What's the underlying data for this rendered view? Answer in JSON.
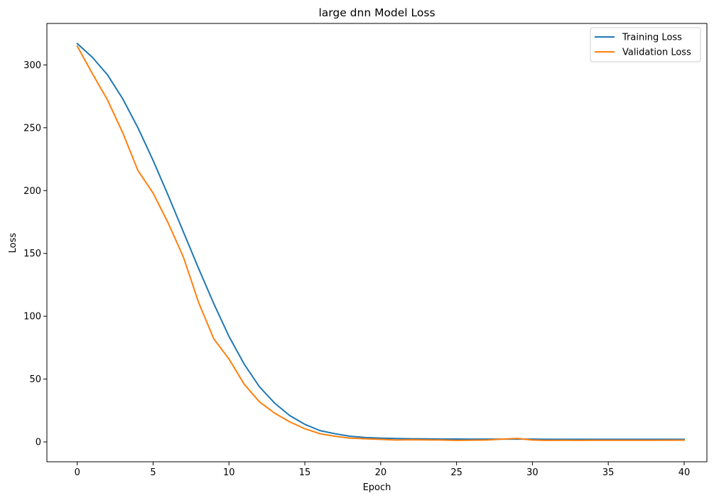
{
  "chart_data": {
    "type": "line",
    "title": "large dnn Model Loss",
    "xlabel": "Epoch",
    "ylabel": "Loss",
    "xlim": [
      -2,
      41.5
    ],
    "ylim": [
      -15.8,
      333
    ],
    "xticks": [
      0,
      5,
      10,
      15,
      20,
      25,
      30,
      35,
      40
    ],
    "yticks": [
      0,
      50,
      100,
      150,
      200,
      250,
      300
    ],
    "grid": false,
    "legend_position": "top-right",
    "x": [
      0,
      1,
      2,
      3,
      4,
      5,
      6,
      7,
      8,
      9,
      10,
      11,
      12,
      13,
      14,
      15,
      16,
      17,
      18,
      19,
      20,
      21,
      22,
      23,
      24,
      25,
      26,
      27,
      28,
      29,
      30,
      31,
      32,
      33,
      34,
      35,
      36,
      37,
      38,
      39,
      40
    ],
    "series": [
      {
        "name": "Training Loss",
        "color": "#1f77b4",
        "values": [
          317,
          306,
          292,
          273,
          250,
          224,
          196,
          167,
          138,
          110,
          84,
          62,
          44,
          31,
          21,
          14,
          9,
          6.5,
          4.5,
          3.5,
          3,
          2.7,
          2.5,
          2.4,
          2.3,
          2.3,
          2.2,
          2.2,
          2.2,
          2.2,
          2.2,
          2.1,
          2.1,
          2.1,
          2.1,
          2.1,
          2.1,
          2.1,
          2.1,
          2.1,
          2.1
        ]
      },
      {
        "name": "Validation Loss",
        "color": "#ff7f0e",
        "values": [
          315,
          293,
          272,
          246,
          216,
          198,
          174,
          147,
          111,
          82,
          66,
          46,
          32,
          23,
          16,
          10.5,
          6.5,
          4.5,
          3,
          2.5,
          2,
          1.5,
          1.7,
          1.6,
          1.5,
          1.2,
          1.4,
          1.5,
          2.2,
          2.8,
          1.5,
          1.2,
          1.3,
          1.2,
          1.3,
          1.3,
          1.3,
          1.3,
          1.3,
          1.4,
          1.4
        ]
      }
    ]
  }
}
